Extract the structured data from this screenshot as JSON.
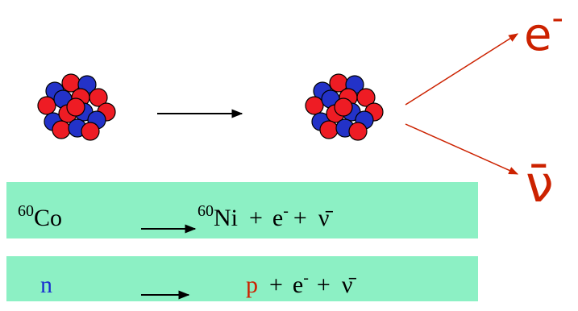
{
  "decay": {
    "electron": "e",
    "electron_charge": "-",
    "antineutrino": "ν̄"
  },
  "equations": [
    {
      "reactant_mass": "60",
      "reactant": "Co",
      "product_mass": "60",
      "product": "Ni",
      "plus_1": "+",
      "electron": "e",
      "charge": "-",
      "plus_2": "+",
      "antineutrino": "ν̄"
    },
    {
      "reactant": "n",
      "product": "p",
      "plus_1": "+",
      "electron": "e",
      "charge": "-",
      "plus_2": "+",
      "antineutrino": "ν̄"
    }
  ]
}
